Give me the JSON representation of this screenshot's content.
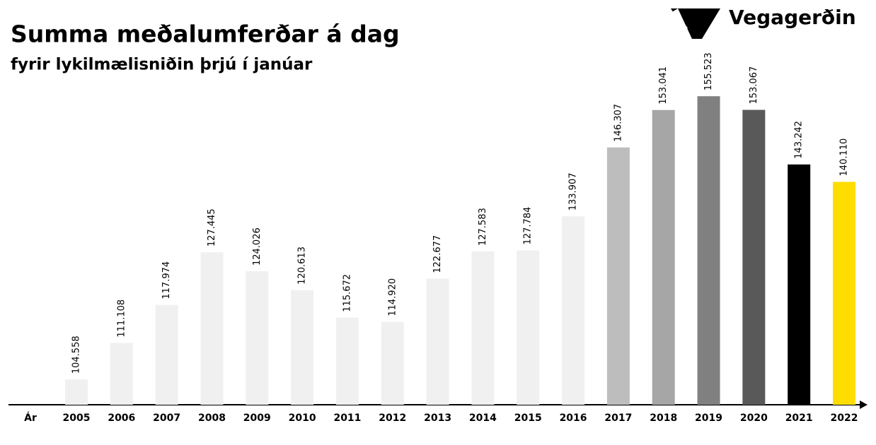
{
  "chart_data": {
    "type": "bar",
    "title": "Summa meðalumferðar á dag",
    "subtitle": "fyrir lykilmælisniðin þrjú í janúar",
    "logo": "Vegagerðin",
    "x_label": "Ár",
    "categories": [
      "2005",
      "2006",
      "2007",
      "2008",
      "2009",
      "2010",
      "2011",
      "2012",
      "2013",
      "2014",
      "2015",
      "2016",
      "2017",
      "2018",
      "2019",
      "2020",
      "2021",
      "2022"
    ],
    "values": [
      104558,
      111108,
      117974,
      127445,
      124026,
      120613,
      115672,
      114920,
      122677,
      127583,
      127784,
      133907,
      146307,
      153041,
      155523,
      153067,
      143242,
      140110
    ],
    "value_labels": [
      "104.558",
      "111.108",
      "117.974",
      "127.445",
      "124.026",
      "120.613",
      "115.672",
      "114.920",
      "122.677",
      "127.583",
      "127.784",
      "133.907",
      "146.307",
      "153.041",
      "155.523",
      "153.067",
      "143.242",
      "140.110"
    ],
    "colors": [
      "#f0f0f0",
      "#f0f0f0",
      "#f0f0f0",
      "#f0f0f0",
      "#f0f0f0",
      "#f0f0f0",
      "#f0f0f0",
      "#f0f0f0",
      "#f0f0f0",
      "#f0f0f0",
      "#f0f0f0",
      "#f0f0f0",
      "#bdbdbd",
      "#a6a6a6",
      "#808080",
      "#595959",
      "#000000",
      "#ffdd00"
    ],
    "ylim": [
      100000,
      160000
    ]
  }
}
